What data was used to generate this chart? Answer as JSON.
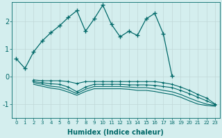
{
  "xlabel": "Humidex (Indice chaleur)",
  "bg_color": "#d4eeee",
  "grid_color": "#c0d8d8",
  "line_color": "#006868",
  "xlim": [
    -0.5,
    23.5
  ],
  "ylim": [
    -1.5,
    2.7
  ],
  "xticks": [
    0,
    1,
    2,
    3,
    4,
    5,
    6,
    7,
    8,
    9,
    10,
    11,
    12,
    13,
    14,
    15,
    16,
    17,
    18,
    19,
    20,
    21,
    22,
    23
  ],
  "yticks": [
    -1,
    0,
    1,
    2
  ],
  "series_main": {
    "x": [
      0,
      1,
      2,
      3,
      4,
      5,
      6,
      7,
      8,
      9,
      10,
      11,
      12,
      13,
      14,
      15,
      16,
      17,
      18
    ],
    "y": [
      0.65,
      0.3,
      0.9,
      1.3,
      1.6,
      1.85,
      2.15,
      2.4,
      1.65,
      2.1,
      2.6,
      1.9,
      1.45,
      1.65,
      1.5,
      2.1,
      2.3,
      1.55,
      0.02
    ]
  },
  "series_a": {
    "x": [
      2,
      3,
      4,
      5,
      6,
      7,
      8,
      9,
      10,
      11,
      12,
      13,
      14,
      15,
      16,
      17,
      18,
      19,
      20,
      21,
      22,
      23
    ],
    "y": [
      -0.12,
      -0.15,
      -0.15,
      -0.15,
      -0.18,
      -0.25,
      -0.18,
      -0.18,
      -0.18,
      -0.18,
      -0.18,
      -0.18,
      -0.18,
      -0.18,
      -0.18,
      -0.22,
      -0.28,
      -0.38,
      -0.5,
      -0.65,
      -0.78,
      -1.0
    ],
    "marker": "+"
  },
  "series_b": {
    "x": [
      2,
      3,
      4,
      5,
      6,
      7,
      8,
      9,
      10,
      11,
      12,
      13,
      14,
      15,
      16,
      17,
      18,
      19,
      20,
      21,
      22,
      23
    ],
    "y": [
      -0.18,
      -0.22,
      -0.26,
      -0.28,
      -0.38,
      -0.55,
      -0.38,
      -0.28,
      -0.28,
      -0.28,
      -0.28,
      -0.3,
      -0.3,
      -0.3,
      -0.32,
      -0.36,
      -0.4,
      -0.5,
      -0.62,
      -0.75,
      -0.88,
      -1.02
    ],
    "marker": "+"
  },
  "series_c": {
    "x": [
      2,
      3,
      4,
      5,
      6,
      7,
      8,
      9,
      10,
      11,
      12,
      13,
      14,
      15,
      16,
      17,
      18,
      19,
      20,
      21,
      22,
      23
    ],
    "y": [
      -0.22,
      -0.28,
      -0.35,
      -0.38,
      -0.48,
      -0.62,
      -0.46,
      -0.36,
      -0.36,
      -0.36,
      -0.36,
      -0.38,
      -0.4,
      -0.4,
      -0.44,
      -0.5,
      -0.55,
      -0.65,
      -0.78,
      -0.9,
      -1.0,
      -1.05
    ],
    "marker": null
  },
  "series_d": {
    "x": [
      2,
      3,
      4,
      5,
      6,
      7,
      8,
      9,
      10,
      11,
      12,
      13,
      14,
      15,
      16,
      17,
      18,
      19,
      20,
      21,
      22,
      23
    ],
    "y": [
      -0.28,
      -0.35,
      -0.42,
      -0.46,
      -0.56,
      -0.68,
      -0.54,
      -0.44,
      -0.44,
      -0.44,
      -0.44,
      -0.46,
      -0.5,
      -0.5,
      -0.54,
      -0.6,
      -0.65,
      -0.75,
      -0.88,
      -1.0,
      -1.05,
      -1.08
    ],
    "marker": null
  }
}
